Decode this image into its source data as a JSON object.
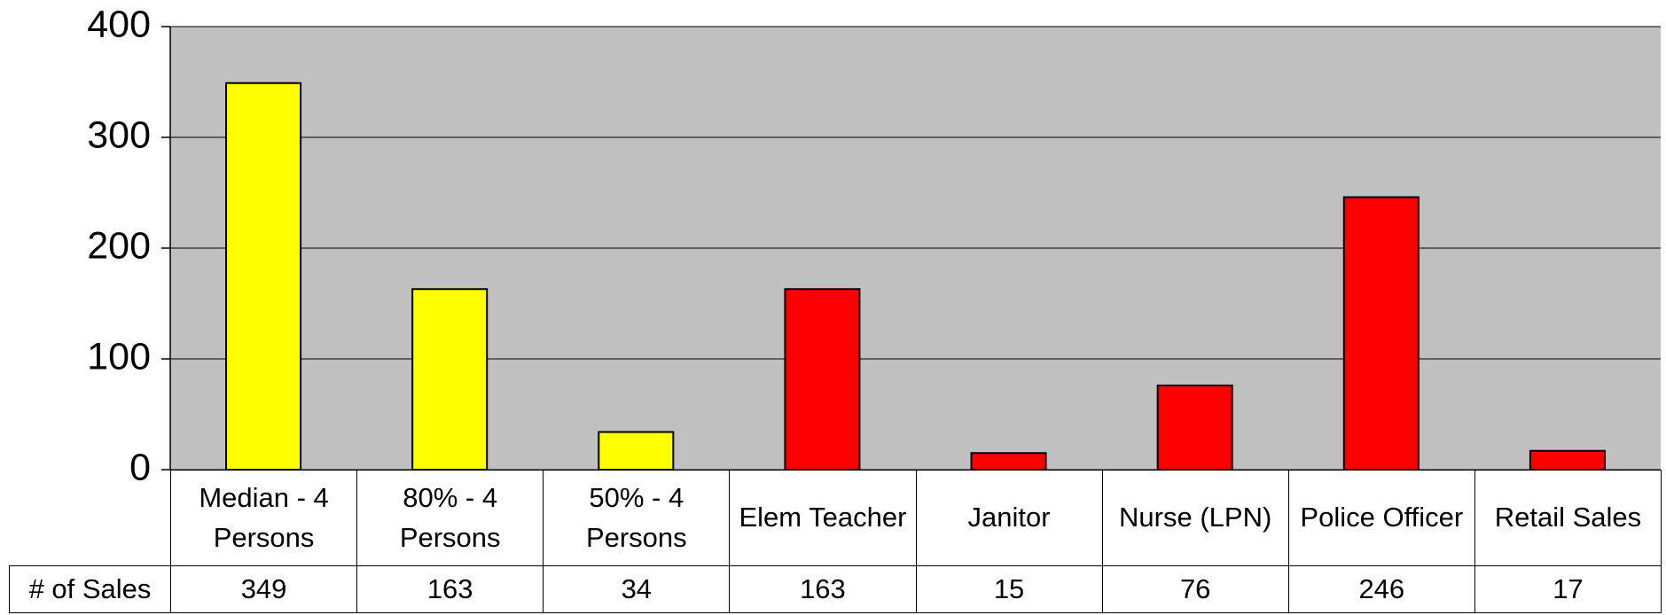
{
  "chart_data": {
    "type": "bar",
    "categories": [
      "Median - 4 Persons",
      "80% - 4 Persons",
      "50% - 4 Persons",
      "Elem Teacher",
      "Janitor",
      "Nurse (LPN)",
      "Police Officer",
      "Retail Sales"
    ],
    "series": [
      {
        "name": "# of Sales",
        "values": [
          349,
          163,
          34,
          163,
          15,
          76,
          246,
          17
        ],
        "colors": [
          "#ffff00",
          "#ffff00",
          "#ffff00",
          "#ff0000",
          "#ff0000",
          "#ff0000",
          "#ff0000",
          "#ff0000"
        ]
      }
    ],
    "ylim": [
      0,
      400
    ],
    "yticks": [
      0,
      100,
      200,
      300,
      400
    ],
    "grid": true,
    "plot_background": "#c0c0c0"
  }
}
